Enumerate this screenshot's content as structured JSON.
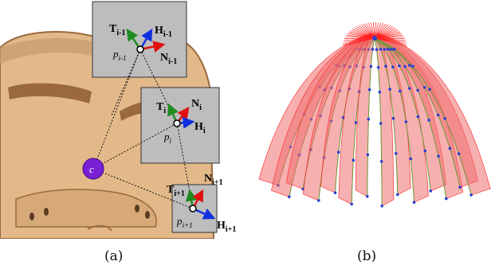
{
  "figure": {
    "panel_a": {
      "caption": "(a)",
      "center_label": "c",
      "frames": [
        {
          "tangent": "T",
          "tangent_sub": "i-1",
          "normal": "N",
          "normal_sub": "i-1",
          "binormal": "H",
          "binormal_sub": "i-1",
          "point": "p",
          "point_sub": "i-1"
        },
        {
          "tangent": "T",
          "tangent_sub": "i",
          "normal": "N",
          "normal_sub": "i",
          "binormal": "H",
          "binormal_sub": "i",
          "point": "p",
          "point_sub": "i"
        },
        {
          "tangent": "T",
          "tangent_sub": "i+1",
          "normal": "N",
          "normal_sub": "i+1",
          "binormal": "H",
          "binormal_sub": "i+1",
          "point": "p",
          "point_sub": "i+1"
        }
      ],
      "colors": {
        "tangent": "#1f8c1f",
        "normal": "#e01010",
        "binormal": "#1030e0",
        "center": "#7a1fd6",
        "head_skin": "#e3b98a",
        "head_dark": "#9a6a3c",
        "frame_box": "#bdbdbd"
      }
    },
    "panel_b": {
      "caption": "(b)",
      "colors": {
        "strand_fill": "#f07070",
        "strand_line": "#ff2020",
        "node": "#2a3fd0",
        "spine": "#6a9a3a"
      }
    }
  }
}
